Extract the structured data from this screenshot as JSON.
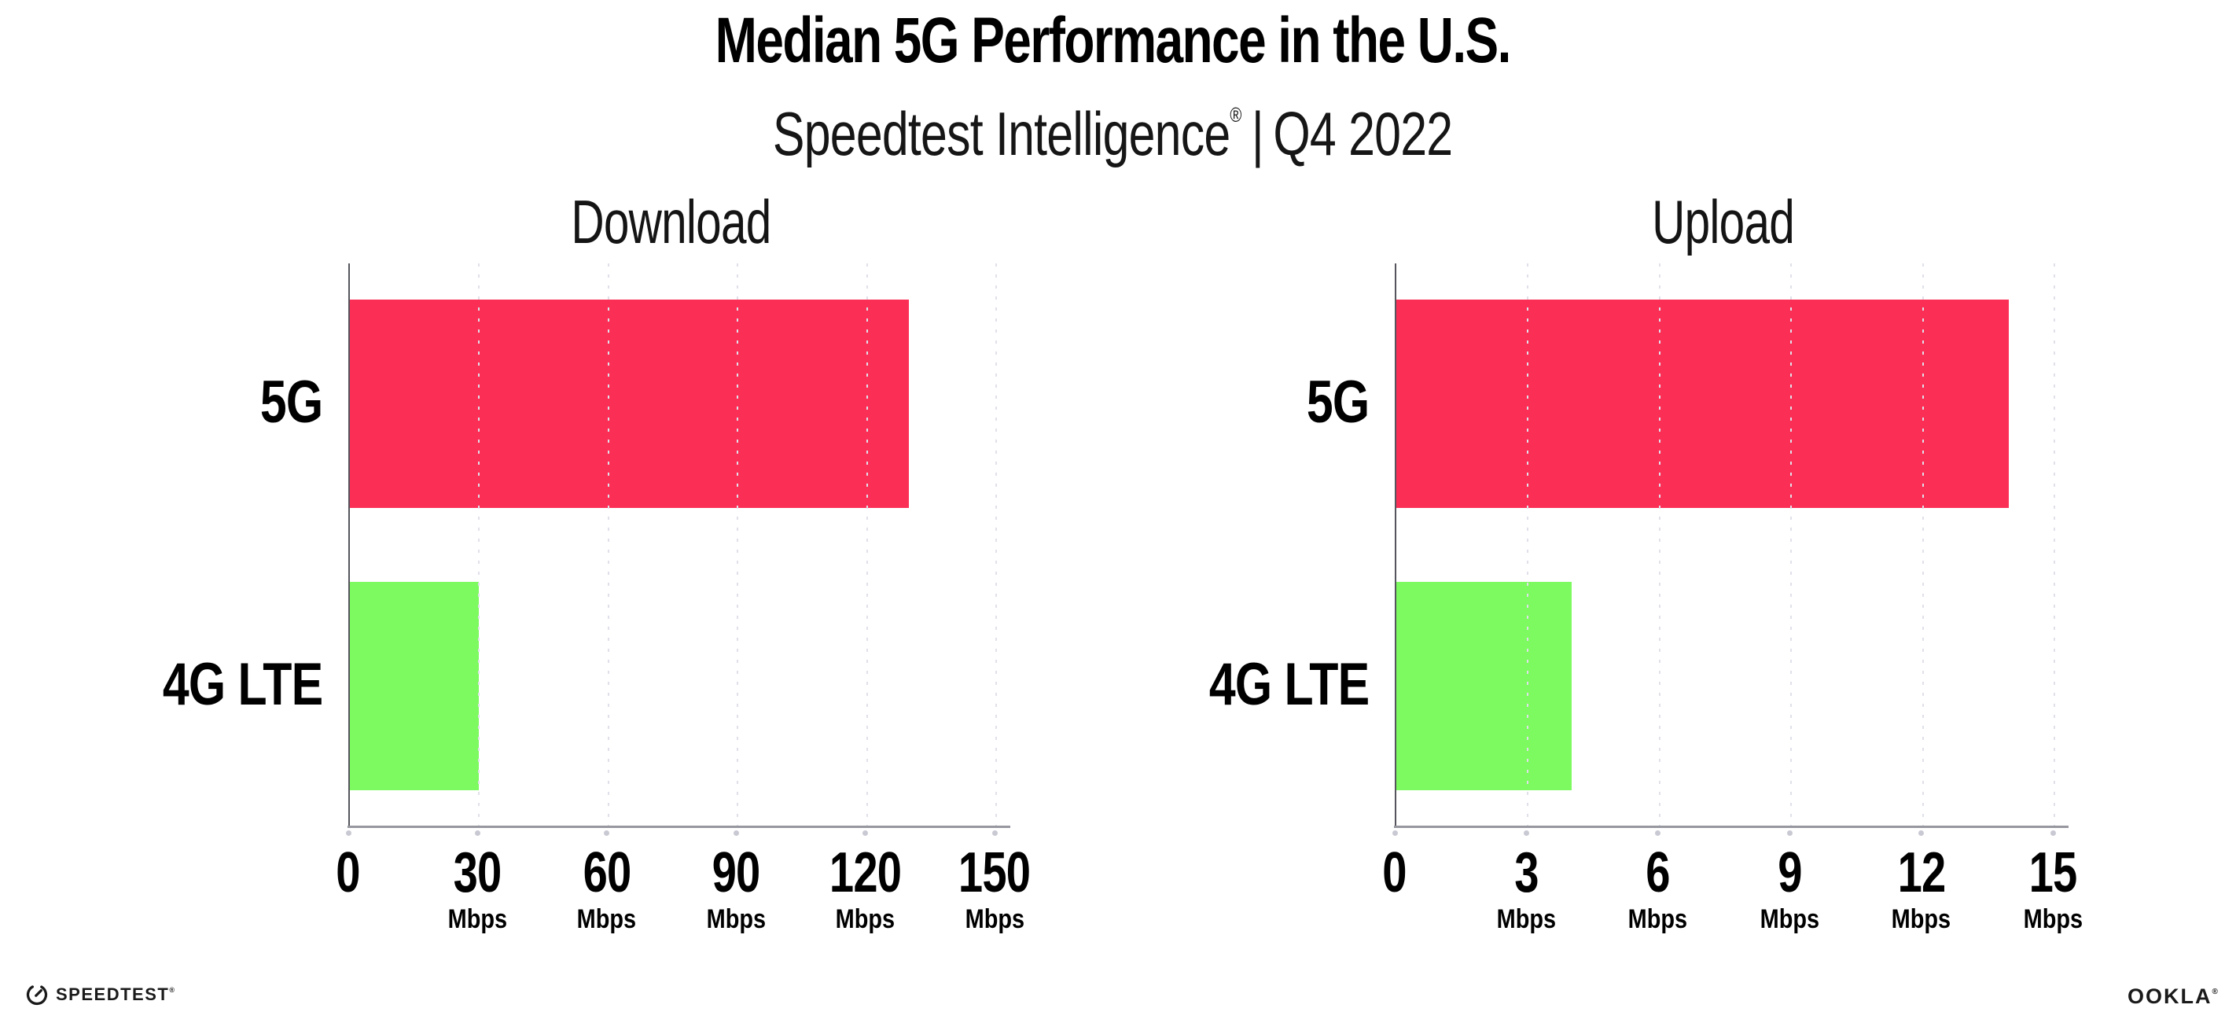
{
  "header": {
    "title": "Median 5G Performance in the U.S.",
    "subtitle": {
      "brand": "Speedtest Intelligence",
      "reg": "®",
      "separator": "|",
      "period": "Q4 2022"
    }
  },
  "chart_data": [
    {
      "type": "bar",
      "orientation": "horizontal",
      "title": "Download",
      "categories": [
        "5G",
        "4G LTE"
      ],
      "values": [
        130,
        30
      ],
      "value_unit": "Mbps",
      "xlim": [
        0,
        150
      ],
      "xticks": [
        0,
        30,
        60,
        90,
        120,
        150
      ],
      "xtick_suffix": "Mbps",
      "grid": "vertical-dotted",
      "bar_colors": [
        "#fb2e56",
        "#7dfa5f"
      ]
    },
    {
      "type": "bar",
      "orientation": "horizontal",
      "title": "Upload",
      "categories": [
        "5G",
        "4G LTE"
      ],
      "values": [
        14,
        4
      ],
      "value_unit": "Mbps",
      "xlim": [
        0,
        15
      ],
      "xticks": [
        0,
        3,
        6,
        9,
        12,
        15
      ],
      "xtick_suffix": "Mbps",
      "grid": "vertical-dotted",
      "bar_colors": [
        "#fb2e56",
        "#7dfa5f"
      ]
    }
  ],
  "footer": {
    "speedtest_wordmark": "SPEEDTEST",
    "speedtest_reg": "®",
    "ookla_wordmark": "OOKLA",
    "ookla_reg": "®"
  },
  "colors": {
    "bar_5g": "#fb2e56",
    "bar_4g_lte": "#7dfa5f",
    "axis_x": "#97979f",
    "axis_y": "#55555d",
    "gridline": "#e0e0ea",
    "tick_dot": "#c9c9d3",
    "text": "#0b0b0c"
  }
}
